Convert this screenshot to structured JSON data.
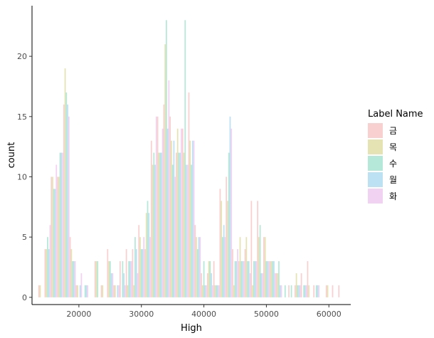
{
  "chart_data": {
    "type": "bar",
    "xlabel": "High",
    "ylabel": "count",
    "xlim": [
      12500,
      63500
    ],
    "ylim": [
      -0.6,
      24.2
    ],
    "x_ticks": [
      20000,
      30000,
      40000,
      50000,
      60000
    ],
    "x_tick_labels": [
      "20000",
      "30000",
      "40000",
      "50000",
      "60000"
    ],
    "y_ticks": [
      0,
      5,
      10,
      15,
      20
    ],
    "y_tick_labels": [
      "0",
      "5",
      "10",
      "15",
      "20"
    ],
    "grid": false,
    "legend_position": "right",
    "legend_title": "Label Name",
    "bin_width": 1000,
    "bins_start": [
      13500,
      14500,
      15500,
      16500,
      17500,
      18500,
      19500,
      20500,
      21500,
      22500,
      23500,
      24500,
      25500,
      26500,
      27500,
      28500,
      29500,
      30500,
      31500,
      32500,
      33500,
      34500,
      35500,
      36500,
      37500,
      38500,
      39500,
      40500,
      41500,
      42500,
      43500,
      44500,
      45500,
      46500,
      47500,
      48500,
      49500,
      50500,
      51500,
      52500,
      53500,
      54500,
      55500,
      56500,
      57500,
      58500,
      59500,
      60500,
      61500
    ],
    "series": [
      {
        "name": "금",
        "color": "#F8D0CF",
        "values": [
          1,
          4,
          10,
          10,
          16,
          5,
          1,
          0,
          0,
          3,
          1,
          4,
          1,
          3,
          4,
          4,
          6,
          4,
          13,
          15,
          16,
          15,
          12,
          14,
          17,
          6,
          2,
          2,
          3,
          9,
          10,
          4,
          3,
          4,
          8,
          8,
          5,
          3,
          2,
          0,
          1,
          1,
          2,
          3,
          1,
          0,
          1,
          1,
          1
        ]
      },
      {
        "name": "목",
        "color": "#E5E3B4",
        "values": [
          1,
          4,
          10,
          10,
          19,
          4,
          1,
          0,
          0,
          3,
          1,
          3,
          1,
          0,
          1,
          1,
          5,
          7,
          11,
          12,
          21,
          13,
          14,
          12,
          13,
          5,
          1,
          3,
          1,
          8,
          8,
          1,
          5,
          5,
          1,
          5,
          5,
          3,
          2,
          0,
          0,
          2,
          0,
          1,
          0,
          0,
          1,
          0,
          0
        ]
      },
      {
        "name": "수",
        "color": "#B5E8D8",
        "values": [
          0,
          5,
          9,
          12,
          17,
          3,
          0,
          1,
          0,
          3,
          0,
          3,
          0,
          3,
          3,
          5,
          4,
          8,
          12,
          12,
          23,
          11,
          12,
          23,
          11,
          4,
          3,
          3,
          1,
          5,
          12,
          3,
          3,
          3,
          3,
          6,
          3,
          3,
          3,
          1,
          1,
          1,
          1,
          0,
          1,
          0,
          0,
          0,
          0
        ]
      },
      {
        "name": "월",
        "color": "#BCE1F3",
        "values": [
          0,
          4,
          9,
          12,
          16,
          3,
          1,
          1,
          0,
          0,
          0,
          2,
          1,
          2,
          3,
          4,
          4,
          7,
          11,
          12,
          14,
          13,
          12,
          11,
          13,
          5,
          1,
          2,
          1,
          6,
          15,
          3,
          3,
          3,
          3,
          2,
          3,
          3,
          1,
          0,
          0,
          1,
          1,
          0,
          1,
          0,
          0,
          0,
          0
        ]
      },
      {
        "name": "화",
        "color": "#F1D2F2",
        "values": [
          0,
          6,
          11,
          12,
          15,
          3,
          2,
          1,
          0,
          0,
          0,
          2,
          1,
          1,
          3,
          2,
          5,
          5,
          15,
          14,
          18,
          10,
          14,
          11,
          13,
          5,
          1,
          1,
          1,
          5,
          14,
          4,
          3,
          2,
          3,
          2,
          3,
          2,
          1,
          0,
          0,
          1,
          1,
          0,
          1,
          0,
          0,
          0,
          0
        ]
      }
    ]
  }
}
